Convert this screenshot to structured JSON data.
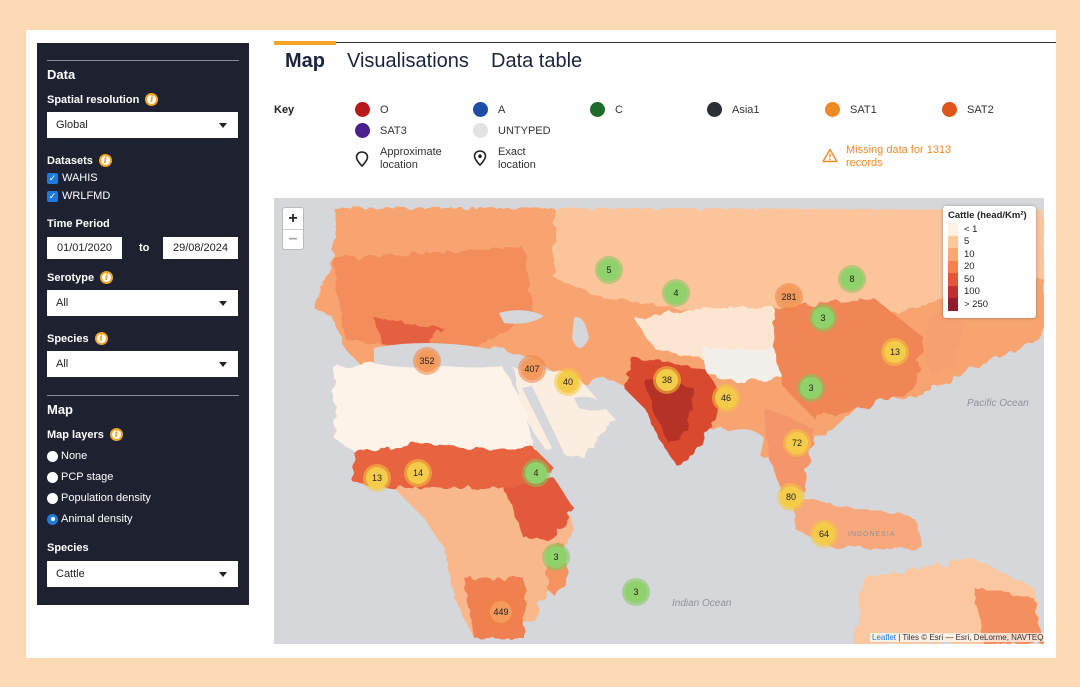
{
  "sidebar": {
    "data_heading": "Data",
    "spatial_resolution_label": "Spatial resolution",
    "spatial_resolution_value": "Global",
    "datasets_label": "Datasets",
    "datasets": [
      {
        "label": "WAHIS",
        "checked": true
      },
      {
        "label": "WRLFMD",
        "checked": true
      }
    ],
    "time_period_label": "Time Period",
    "date_from": "01/01/2020",
    "date_to_label": "to",
    "date_to": "29/08/2024",
    "serotype_label": "Serotype",
    "serotype_value": "All",
    "species_label": "Species",
    "species_value": "All",
    "map_heading": "Map",
    "map_layers_label": "Map layers",
    "map_layers": [
      {
        "label": "None",
        "selected": false
      },
      {
        "label": "PCP stage",
        "selected": false
      },
      {
        "label": "Population density",
        "selected": false
      },
      {
        "label": "Animal density",
        "selected": true
      }
    ],
    "species2_label": "Species",
    "species2_value": "Cattle"
  },
  "tabs": [
    {
      "label": "Map",
      "active": true
    },
    {
      "label": "Visualisations",
      "active": false
    },
    {
      "label": "Data table",
      "active": false
    }
  ],
  "key": {
    "title": "Key",
    "items": [
      {
        "label": "O",
        "color": "#b8191c"
      },
      {
        "label": "A",
        "color": "#1d4fa8"
      },
      {
        "label": "C",
        "color": "#1f6b2a"
      },
      {
        "label": "Asia1",
        "color": "#2b2f36"
      },
      {
        "label": "SAT1",
        "color": "#f08a24"
      },
      {
        "label": "SAT2",
        "color": "#e0561a"
      },
      {
        "label": "SAT3",
        "color": "#4b1f8e"
      },
      {
        "label": "UNTYPED",
        "color": "#e2e2e2"
      }
    ],
    "approx_location": "Approximate location",
    "exact_location": "Exact location",
    "warning": "Missing data for 1313 records"
  },
  "map": {
    "zoom_in": "+",
    "zoom_out": "−",
    "legend_title": "Cattle (head/Km²)",
    "legend": [
      {
        "label": "< 1",
        "color": "#fdf1e4"
      },
      {
        "label": "5",
        "color": "#fdc99a"
      },
      {
        "label": "10",
        "color": "#fca870"
      },
      {
        "label": "20",
        "color": "#f6824d"
      },
      {
        "label": "50",
        "color": "#e4553a"
      },
      {
        "label": "100",
        "color": "#c03030"
      },
      {
        "label": "> 250",
        "color": "#8e1f2f"
      }
    ],
    "clusters": [
      "5",
      "4",
      "281",
      "8",
      "3",
      "352",
      "407",
      "40",
      "38",
      "46",
      "3",
      "13",
      "72",
      "13",
      "14",
      "4",
      "80",
      "64",
      "3",
      "3",
      "449"
    ],
    "ocean_labels": {
      "pacific": "Pacific Ocean",
      "indian": "Indian Ocean",
      "indonesia": "INDONESIA"
    },
    "attribution_leaflet": "Leaflet",
    "attribution_tiles": " | Tiles © Esri — Esri, DeLorme, NAVTEQ"
  }
}
